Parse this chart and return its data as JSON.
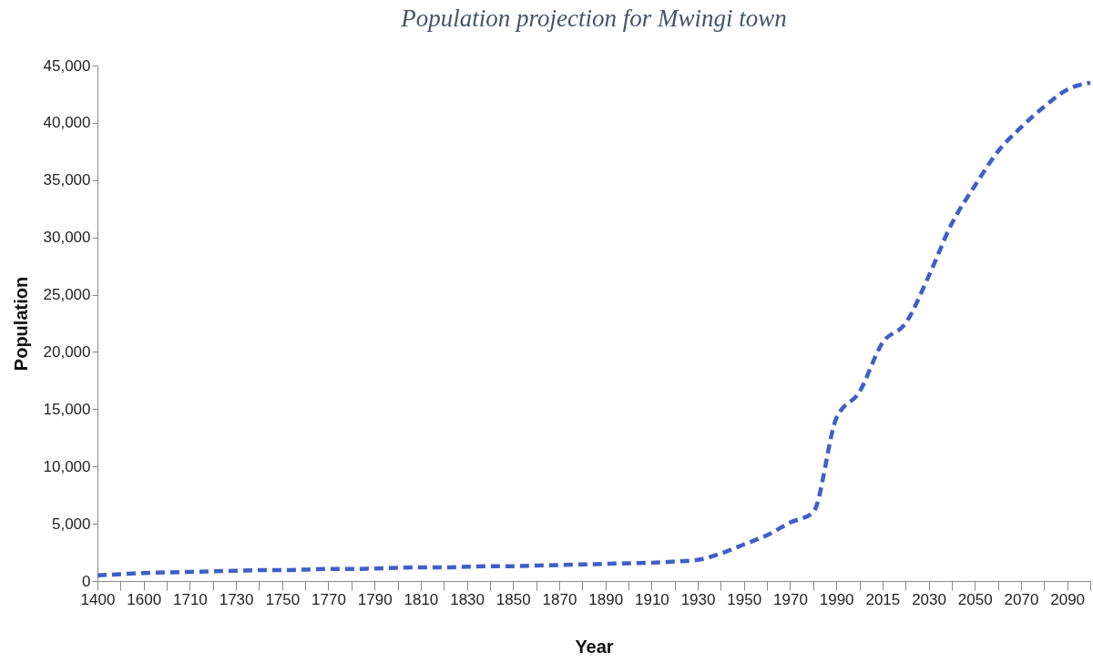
{
  "chart_data": {
    "type": "line",
    "title": "Population projection for Mwingi town",
    "xlabel": "Year",
    "ylabel": "Population",
    "categories": [
      "1400",
      null,
      "1600",
      null,
      "1710",
      null,
      "1730",
      null,
      "1750",
      null,
      "1770",
      null,
      "1790",
      null,
      "1810",
      null,
      "1830",
      null,
      "1850",
      null,
      "1870",
      null,
      "1890",
      null,
      "1910",
      null,
      "1930",
      null,
      "1950",
      null,
      "1970",
      null,
      "1990",
      null,
      "2015",
      null,
      "2030",
      null,
      "2050",
      null,
      "2070",
      null,
      "2090",
      null
    ],
    "series": [
      {
        "color": "#3f5fc8",
        "values": [
          500,
          600,
          700,
          750,
          800,
          850,
          900,
          950,
          950,
          1000,
          1050,
          1050,
          1100,
          1150,
          1200,
          1200,
          1250,
          1300,
          1300,
          1350,
          1400,
          1450,
          1500,
          1550,
          1600,
          1700,
          1850,
          2400,
          3200,
          4000,
          5100,
          6000,
          14200,
          16500,
          20800,
          22500,
          26600,
          31200,
          34500,
          37500,
          39600,
          41400,
          42900,
          43500
        ]
      }
    ],
    "ylim": [
      0,
      45000
    ],
    "yticks": [
      0,
      {
        "value": 5000,
        "label": "5,000"
      },
      {
        "value": 10000,
        "label": "10,000"
      },
      {
        "value": 15000,
        "label": "15,000"
      },
      {
        "value": 20000,
        "label": "20,000"
      },
      {
        "value": 25000,
        "label": "25,000"
      },
      {
        "value": 30000,
        "label": "30,000"
      },
      {
        "value": 35000,
        "label": "35,000"
      },
      {
        "value": 40000,
        "label": "40,000"
      },
      {
        "value": 45000,
        "label": "45,000"
      }
    ],
    "grid": false,
    "line_style": "dashed"
  }
}
